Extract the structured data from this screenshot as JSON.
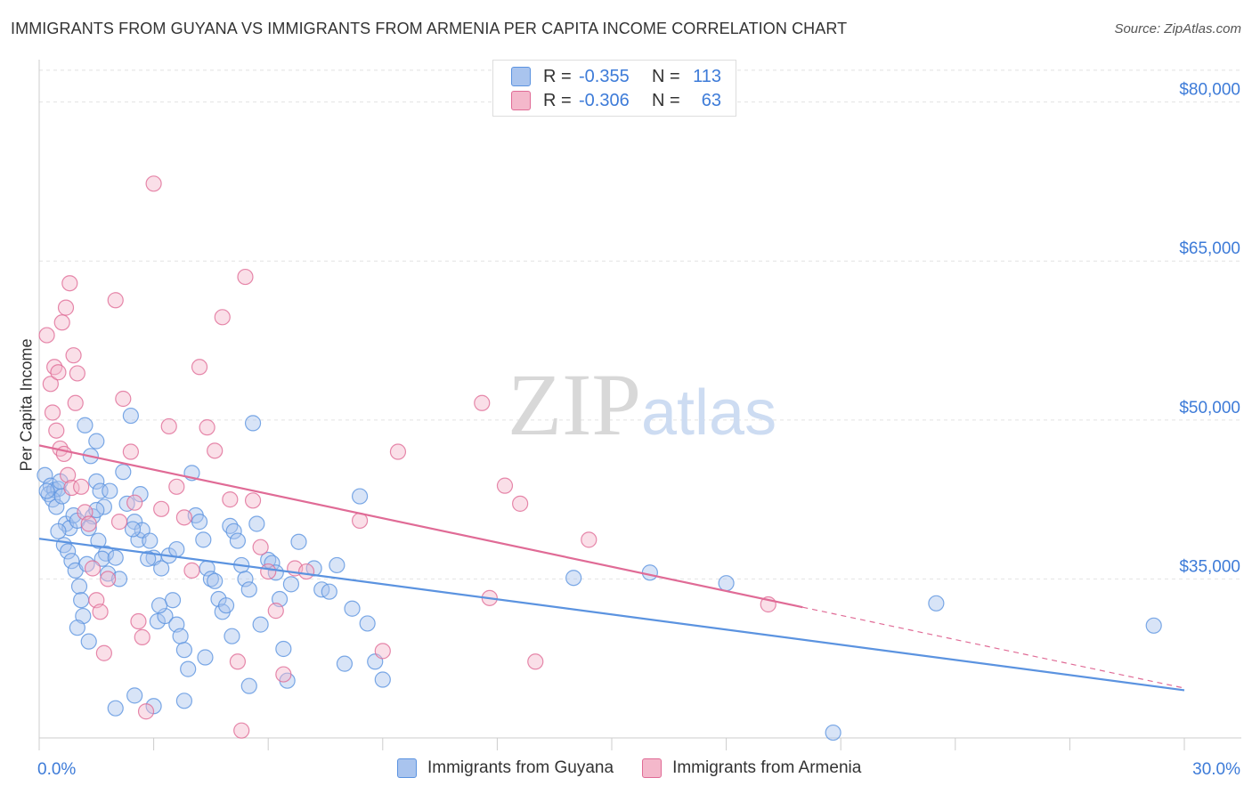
{
  "title": "IMMIGRANTS FROM GUYANA VS IMMIGRANTS FROM ARMENIA PER CAPITA INCOME CORRELATION CHART",
  "source": "Source: ZipAtlas.com",
  "watermark": {
    "zip": "ZIP",
    "atlas": "atlas"
  },
  "legend_top": {
    "rows": [
      {
        "r_label": "R =",
        "r_value": "-0.355",
        "n_label": "N =",
        "n_value": "113",
        "color": "#a9c4ee"
      },
      {
        "r_label": "R =",
        "r_value": "-0.306",
        "n_label": "N =",
        "n_value": "63",
        "color": "#f4b8cb"
      }
    ]
  },
  "legend_bottom": [
    {
      "label": "Immigrants from Guyana",
      "color": "#a9c4ee"
    },
    {
      "label": "Immigrants from Armenia",
      "color": "#f4b8cb"
    }
  ],
  "chart_data": {
    "type": "scatter",
    "title": "IMMIGRANTS FROM GUYANA VS IMMIGRANTS FROM ARMENIA PER CAPITA INCOME CORRELATION CHART",
    "xlabel": "",
    "ylabel": "Per Capita Income",
    "xlim": [
      0,
      30
    ],
    "ylim": [
      20000,
      84000
    ],
    "x_tick_labels": [
      {
        "value": 0,
        "label": "0.0%"
      },
      {
        "value": 30,
        "label": "30.0%"
      }
    ],
    "y_ticks": [
      {
        "value": 35000,
        "label": "$35,000"
      },
      {
        "value": 50000,
        "label": "$50,000"
      },
      {
        "value": 65000,
        "label": "$65,000"
      },
      {
        "value": 80000,
        "label": "$80,000"
      }
    ],
    "x_minor_ticks": [
      0,
      3,
      6,
      9,
      12,
      15,
      18,
      21,
      24,
      27,
      30
    ],
    "grid": true,
    "series": [
      {
        "name": "Immigrants from Guyana",
        "color": "#5b93e0",
        "fill": "#a9c4ee",
        "trend": {
          "x0": 0,
          "y0": 38800,
          "x1": 30,
          "y1": 24500,
          "dash_from": null
        },
        "points": [
          [
            0.15,
            44800
          ],
          [
            0.3,
            43800
          ],
          [
            0.25,
            43000
          ],
          [
            0.4,
            43400
          ],
          [
            0.5,
            43500
          ],
          [
            0.35,
            42500
          ],
          [
            0.45,
            41800
          ],
          [
            0.6,
            42800
          ],
          [
            0.7,
            40200
          ],
          [
            0.8,
            39800
          ],
          [
            0.9,
            41000
          ],
          [
            1.0,
            40500
          ],
          [
            0.5,
            39500
          ],
          [
            0.65,
            38200
          ],
          [
            0.75,
            37600
          ],
          [
            0.85,
            36700
          ],
          [
            0.95,
            35800
          ],
          [
            1.05,
            34300
          ],
          [
            1.1,
            33000
          ],
          [
            1.15,
            31500
          ],
          [
            1.0,
            30400
          ],
          [
            1.3,
            29100
          ],
          [
            1.2,
            49500
          ],
          [
            1.35,
            46600
          ],
          [
            1.5,
            48000
          ],
          [
            1.5,
            44200
          ],
          [
            1.6,
            43300
          ],
          [
            1.7,
            41800
          ],
          [
            1.4,
            40900
          ],
          [
            1.55,
            38600
          ],
          [
            1.75,
            37400
          ],
          [
            1.8,
            35500
          ],
          [
            1.65,
            36900
          ],
          [
            2.0,
            37000
          ],
          [
            2.1,
            35000
          ],
          [
            2.2,
            45100
          ],
          [
            2.4,
            50400
          ],
          [
            2.3,
            42100
          ],
          [
            2.5,
            40400
          ],
          [
            2.6,
            38700
          ],
          [
            2.7,
            39600
          ],
          [
            2.9,
            38600
          ],
          [
            3.0,
            37000
          ],
          [
            3.2,
            36000
          ],
          [
            3.4,
            37200
          ],
          [
            3.1,
            31000
          ],
          [
            3.3,
            31500
          ],
          [
            3.5,
            33000
          ],
          [
            3.6,
            30700
          ],
          [
            3.7,
            29600
          ],
          [
            3.8,
            28300
          ],
          [
            3.9,
            26500
          ],
          [
            4.0,
            45000
          ],
          [
            4.1,
            41000
          ],
          [
            4.2,
            40400
          ],
          [
            4.3,
            38700
          ],
          [
            4.4,
            36000
          ],
          [
            4.5,
            35000
          ],
          [
            4.6,
            34800
          ],
          [
            4.7,
            33100
          ],
          [
            4.8,
            31900
          ],
          [
            4.9,
            32500
          ],
          [
            5.0,
            40000
          ],
          [
            5.1,
            39500
          ],
          [
            5.2,
            38600
          ],
          [
            5.3,
            36300
          ],
          [
            5.4,
            35000
          ],
          [
            5.5,
            34000
          ],
          [
            5.6,
            49700
          ],
          [
            5.7,
            40200
          ],
          [
            5.8,
            30700
          ],
          [
            6.0,
            36800
          ],
          [
            6.1,
            36500
          ],
          [
            6.2,
            35600
          ],
          [
            6.3,
            33100
          ],
          [
            6.4,
            28400
          ],
          [
            6.5,
            25400
          ],
          [
            6.6,
            34500
          ],
          [
            7.2,
            36000
          ],
          [
            7.4,
            34000
          ],
          [
            7.6,
            33800
          ],
          [
            7.8,
            36300
          ],
          [
            8.0,
            27000
          ],
          [
            8.2,
            32200
          ],
          [
            8.4,
            42800
          ],
          [
            8.6,
            30800
          ],
          [
            8.8,
            27200
          ],
          [
            9.0,
            25500
          ],
          [
            2.0,
            22800
          ],
          [
            3.0,
            23000
          ],
          [
            2.5,
            24000
          ],
          [
            3.8,
            23500
          ],
          [
            1.5,
            41500
          ],
          [
            1.3,
            39800
          ],
          [
            0.2,
            43300
          ],
          [
            0.55,
            44200
          ],
          [
            1.85,
            43300
          ],
          [
            2.45,
            39700
          ],
          [
            3.6,
            37800
          ],
          [
            2.85,
            36900
          ],
          [
            1.25,
            36400
          ],
          [
            2.65,
            43000
          ],
          [
            3.15,
            32500
          ],
          [
            6.8,
            38500
          ],
          [
            14.0,
            35100
          ],
          [
            16.0,
            35600
          ],
          [
            18.0,
            34600
          ],
          [
            23.5,
            32700
          ],
          [
            29.2,
            30600
          ],
          [
            20.8,
            20500
          ],
          [
            4.35,
            27600
          ],
          [
            5.05,
            29600
          ],
          [
            5.5,
            24900
          ]
        ]
      },
      {
        "name": "Immigrants from Armenia",
        "color": "#e06b96",
        "fill": "#f4b8cb",
        "trend": {
          "x0": 0,
          "y0": 47600,
          "x1": 30,
          "y1": 24700,
          "dash_from": 20
        },
        "points": [
          [
            0.2,
            58000
          ],
          [
            0.3,
            53400
          ],
          [
            0.4,
            55000
          ],
          [
            0.5,
            54500
          ],
          [
            0.6,
            59200
          ],
          [
            0.7,
            60600
          ],
          [
            0.8,
            62900
          ],
          [
            0.9,
            56100
          ],
          [
            1.0,
            54400
          ],
          [
            0.35,
            50700
          ],
          [
            0.45,
            49000
          ],
          [
            0.55,
            47300
          ],
          [
            0.65,
            46800
          ],
          [
            0.75,
            44800
          ],
          [
            0.85,
            43600
          ],
          [
            0.95,
            51600
          ],
          [
            1.1,
            43700
          ],
          [
            1.2,
            41300
          ],
          [
            1.3,
            40200
          ],
          [
            1.4,
            36000
          ],
          [
            1.5,
            33000
          ],
          [
            1.6,
            31900
          ],
          [
            1.7,
            28000
          ],
          [
            1.8,
            35000
          ],
          [
            2.0,
            61300
          ],
          [
            2.1,
            40400
          ],
          [
            2.2,
            52000
          ],
          [
            2.4,
            47000
          ],
          [
            2.5,
            42200
          ],
          [
            2.6,
            31000
          ],
          [
            2.7,
            29500
          ],
          [
            2.8,
            22500
          ],
          [
            3.0,
            72300
          ],
          [
            3.2,
            41600
          ],
          [
            3.4,
            49400
          ],
          [
            3.6,
            43700
          ],
          [
            3.8,
            40800
          ],
          [
            4.0,
            35800
          ],
          [
            4.2,
            55000
          ],
          [
            4.4,
            49300
          ],
          [
            4.6,
            47100
          ],
          [
            4.8,
            59700
          ],
          [
            5.0,
            42500
          ],
          [
            5.2,
            27200
          ],
          [
            5.4,
            63500
          ],
          [
            5.6,
            42400
          ],
          [
            5.8,
            38000
          ],
          [
            6.0,
            35700
          ],
          [
            6.2,
            32000
          ],
          [
            6.4,
            26000
          ],
          [
            6.7,
            36000
          ],
          [
            7.0,
            35700
          ],
          [
            8.4,
            40500
          ],
          [
            9.0,
            28200
          ],
          [
            9.4,
            47000
          ],
          [
            11.6,
            51600
          ],
          [
            11.8,
            33200
          ],
          [
            12.2,
            43800
          ],
          [
            12.6,
            42100
          ],
          [
            13.0,
            27200
          ],
          [
            14.4,
            38700
          ],
          [
            19.1,
            32600
          ],
          [
            5.3,
            20700
          ]
        ]
      }
    ]
  }
}
